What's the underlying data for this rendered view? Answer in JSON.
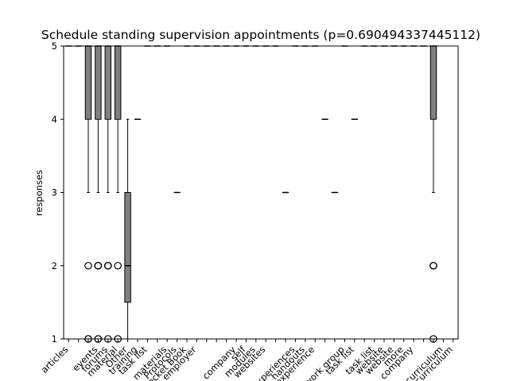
{
  "chart_data": {
    "type": "boxplot",
    "title": "Schedule standing supervision appointments (p=0.690494337445112)",
    "xlabel": "",
    "ylabel": "responses",
    "ylim": [
      1,
      5
    ],
    "yticks": [
      1,
      2,
      3,
      4,
      5
    ],
    "grid": false,
    "colors": {
      "box_fill": "#808080",
      "box_edge": "#000000",
      "median": "#000000",
      "flier_edge": "#000000"
    },
    "categories": [
      "articles",
      "",
      "",
      "events",
      "forums",
      "material",
      "Other",
      "training",
      "task list",
      "",
      "materials",
      "Protocols",
      "Pocket Book",
      "employer",
      "",
      "",
      "",
      "company",
      "self",
      "modules",
      "websites",
      "",
      "",
      "experiences",
      "handouts",
      "experience",
      "",
      "",
      "work group",
      "task list",
      "",
      "task list",
      "website",
      "website",
      "more",
      "company",
      "",
      "",
      "curriculum",
      "curriculum"
    ],
    "boxes": [
      {
        "q1": 5,
        "median": 5,
        "q3": 5,
        "whislo": 5,
        "whishi": 5,
        "fliers": []
      },
      {
        "q1": 5,
        "median": 5,
        "q3": 5,
        "whislo": 5,
        "whishi": 5,
        "fliers": []
      },
      {
        "q1": 4,
        "median": 5,
        "q3": 5,
        "whislo": 3,
        "whishi": 5,
        "fliers": [
          1,
          1,
          2
        ]
      },
      {
        "q1": 4,
        "median": 5,
        "q3": 5,
        "whislo": 3,
        "whishi": 5,
        "fliers": [
          1,
          1,
          2,
          2,
          2
        ]
      },
      {
        "q1": 4,
        "median": 5,
        "q3": 5,
        "whislo": 3,
        "whishi": 5,
        "fliers": [
          1,
          2,
          2,
          2
        ]
      },
      {
        "q1": 4,
        "median": 5,
        "q3": 5,
        "whislo": 3,
        "whishi": 5,
        "fliers": [
          1,
          2
        ]
      },
      {
        "q1": 1.5,
        "median": 2,
        "q3": 3,
        "whislo": 1,
        "whishi": 4,
        "fliers": []
      },
      {
        "q1": 4,
        "median": 4,
        "q3": 4,
        "whislo": 4,
        "whishi": 4,
        "fliers": []
      },
      {
        "q1": 5,
        "median": 5,
        "q3": 5,
        "whislo": 5,
        "whishi": 5,
        "fliers": []
      },
      {
        "q1": 5,
        "median": 5,
        "q3": 5,
        "whislo": 5,
        "whishi": 5,
        "fliers": []
      },
      {
        "q1": 5,
        "median": 5,
        "q3": 5,
        "whislo": 5,
        "whishi": 5,
        "fliers": []
      },
      {
        "q1": 3,
        "median": 3,
        "q3": 3,
        "whislo": 3,
        "whishi": 3,
        "fliers": []
      },
      {
        "q1": 5,
        "median": 5,
        "q3": 5,
        "whislo": 5,
        "whishi": 5,
        "fliers": []
      },
      {
        "q1": 5,
        "median": 5,
        "q3": 5,
        "whislo": 5,
        "whishi": 5,
        "fliers": []
      },
      {
        "q1": 5,
        "median": 5,
        "q3": 5,
        "whislo": 5,
        "whishi": 5,
        "fliers": []
      },
      {
        "q1": 5,
        "median": 5,
        "q3": 5,
        "whislo": 5,
        "whishi": 5,
        "fliers": []
      },
      {
        "q1": 5,
        "median": 5,
        "q3": 5,
        "whislo": 5,
        "whishi": 5,
        "fliers": []
      },
      {
        "q1": 5,
        "median": 5,
        "q3": 5,
        "whislo": 5,
        "whishi": 5,
        "fliers": []
      },
      {
        "q1": 5,
        "median": 5,
        "q3": 5,
        "whislo": 5,
        "whishi": 5,
        "fliers": []
      },
      {
        "q1": 5,
        "median": 5,
        "q3": 5,
        "whislo": 5,
        "whishi": 5,
        "fliers": []
      },
      {
        "q1": 5,
        "median": 5,
        "q3": 5,
        "whislo": 5,
        "whishi": 5,
        "fliers": []
      },
      {
        "q1": 5,
        "median": 5,
        "q3": 5,
        "whislo": 5,
        "whishi": 5,
        "fliers": []
      },
      {
        "q1": 3,
        "median": 3,
        "q3": 3,
        "whislo": 3,
        "whishi": 3,
        "fliers": []
      },
      {
        "q1": 5,
        "median": 5,
        "q3": 5,
        "whislo": 5,
        "whishi": 5,
        "fliers": []
      },
      {
        "q1": 5,
        "median": 5,
        "q3": 5,
        "whislo": 5,
        "whishi": 5,
        "fliers": []
      },
      {
        "q1": 5,
        "median": 5,
        "q3": 5,
        "whislo": 5,
        "whishi": 5,
        "fliers": []
      },
      {
        "q1": 4,
        "median": 4,
        "q3": 4,
        "whislo": 4,
        "whishi": 4,
        "fliers": []
      },
      {
        "q1": 3,
        "median": 3,
        "q3": 3,
        "whislo": 3,
        "whishi": 3,
        "fliers": []
      },
      {
        "q1": 5,
        "median": 5,
        "q3": 5,
        "whislo": 5,
        "whishi": 5,
        "fliers": []
      },
      {
        "q1": 4,
        "median": 4,
        "q3": 4,
        "whislo": 4,
        "whishi": 4,
        "fliers": []
      },
      {
        "q1": 5,
        "median": 5,
        "q3": 5,
        "whislo": 5,
        "whishi": 5,
        "fliers": []
      },
      {
        "q1": 5,
        "median": 5,
        "q3": 5,
        "whislo": 5,
        "whishi": 5,
        "fliers": []
      },
      {
        "q1": 5,
        "median": 5,
        "q3": 5,
        "whislo": 5,
        "whishi": 5,
        "fliers": []
      },
      {
        "q1": 5,
        "median": 5,
        "q3": 5,
        "whislo": 5,
        "whishi": 5,
        "fliers": []
      },
      {
        "q1": 5,
        "median": 5,
        "q3": 5,
        "whislo": 5,
        "whishi": 5,
        "fliers": []
      },
      {
        "q1": 5,
        "median": 5,
        "q3": 5,
        "whislo": 5,
        "whishi": 5,
        "fliers": []
      },
      {
        "q1": 5,
        "median": 5,
        "q3": 5,
        "whislo": 5,
        "whishi": 5,
        "fliers": []
      },
      {
        "q1": 4,
        "median": 5,
        "q3": 5,
        "whislo": 3,
        "whishi": 5,
        "fliers": [
          1,
          2,
          2,
          2
        ]
      },
      {
        "q1": null,
        "median": null,
        "q3": null,
        "whislo": null,
        "whishi": null,
        "fliers": []
      },
      {
        "q1": null,
        "median": null,
        "q3": null,
        "whislo": null,
        "whishi": null,
        "fliers": []
      }
    ]
  }
}
